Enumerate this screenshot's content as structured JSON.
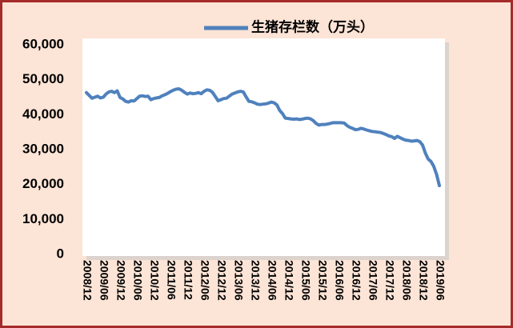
{
  "chart_data": {
    "type": "line",
    "categories": [
      "2008/12",
      null,
      null,
      null,
      null,
      null,
      "2009/06",
      null,
      null,
      null,
      null,
      null,
      "2009/12",
      null,
      null,
      null,
      null,
      null,
      "2010/06",
      null,
      null,
      null,
      null,
      null,
      "2010/12",
      null,
      null,
      null,
      null,
      null,
      "2011/06",
      null,
      null,
      null,
      null,
      null,
      "2011/12",
      null,
      null,
      null,
      null,
      null,
      "2012/06",
      null,
      null,
      null,
      null,
      null,
      "2012/12",
      null,
      null,
      null,
      null,
      null,
      "2013/06",
      null,
      null,
      null,
      null,
      null,
      "2013/12",
      null,
      null,
      null,
      null,
      null,
      "2014/06",
      null,
      null,
      null,
      null,
      null,
      "2014/12",
      null,
      null,
      null,
      null,
      null,
      "2015/06",
      null,
      null,
      null,
      null,
      null,
      "2015/12",
      null,
      null,
      null,
      null,
      null,
      "2016/06",
      null,
      null,
      null,
      null,
      null,
      "2016/12",
      null,
      null,
      null,
      null,
      null,
      "2017/06",
      null,
      null,
      null,
      null,
      null,
      "2017/12",
      null,
      null,
      null,
      null,
      null,
      "2018/06",
      null,
      null,
      null,
      null,
      null,
      "2018/12",
      null,
      null,
      null,
      null,
      null,
      "2019/06"
    ],
    "series": [
      {
        "name": "生猪存栏数（万头）",
        "color": "#4f81bd",
        "values": [
          46300,
          45500,
          44700,
          45000,
          45300,
          44800,
          45000,
          45900,
          46500,
          46700,
          46300,
          46800,
          44900,
          44500,
          43800,
          43600,
          44000,
          43900,
          44600,
          45300,
          45400,
          45200,
          45300,
          44300,
          44600,
          44800,
          44900,
          45400,
          45700,
          46100,
          46600,
          47000,
          47300,
          47400,
          47000,
          46400,
          45900,
          46200,
          46000,
          46100,
          46300,
          46000,
          46700,
          47100,
          47000,
          46400,
          45200,
          44000,
          44300,
          44600,
          44700,
          45300,
          45900,
          46200,
          46500,
          46700,
          46500,
          45100,
          43800,
          43700,
          43400,
          43000,
          42900,
          43000,
          43100,
          43300,
          43600,
          43400,
          42800,
          41200,
          40300,
          39000,
          38900,
          38800,
          38700,
          38800,
          38600,
          38700,
          38900,
          39000,
          38800,
          38300,
          37500,
          37000,
          37200,
          37200,
          37300,
          37500,
          37700,
          37700,
          37700,
          37700,
          37600,
          36900,
          36400,
          36100,
          35700,
          35800,
          36100,
          35900,
          35600,
          35400,
          35200,
          35100,
          35000,
          34900,
          34600,
          34300,
          33900,
          33700,
          33200,
          33800,
          33400,
          33000,
          32700,
          32600,
          32400,
          32500,
          32600,
          32300,
          31300,
          29000,
          27300,
          26600,
          25200,
          22900,
          19700
        ]
      }
    ],
    "ylim": [
      0,
      60000
    ],
    "yticks": [
      0,
      {
        "value": 10000,
        "label": "10,000"
      },
      {
        "value": 20000,
        "label": "20,000"
      },
      {
        "value": 30000,
        "label": "30,000"
      },
      {
        "value": 40000,
        "label": "40,000"
      },
      {
        "value": 50000,
        "label": "50,000"
      },
      {
        "value": 60000,
        "label": "60,000"
      }
    ],
    "legend": "top"
  }
}
